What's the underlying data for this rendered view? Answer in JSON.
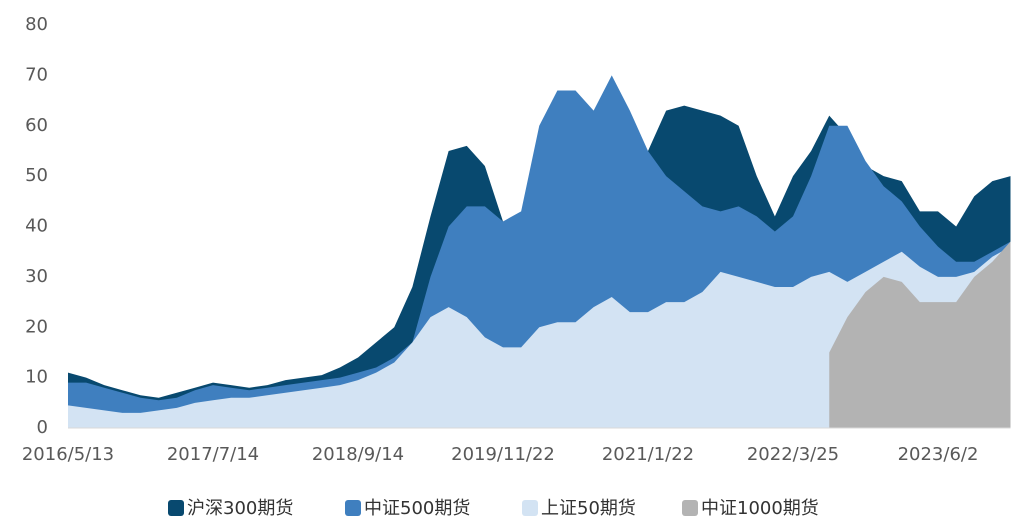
{
  "chart_data": {
    "type": "area",
    "categories": [
      "2016/5/13",
      null,
      null,
      null,
      null,
      null,
      null,
      null,
      "2017/7/14",
      null,
      null,
      null,
      null,
      null,
      null,
      null,
      "2018/9/14",
      null,
      null,
      null,
      null,
      null,
      null,
      null,
      "2019/11/22",
      null,
      null,
      null,
      null,
      null,
      null,
      null,
      "2021/1/22",
      null,
      null,
      null,
      null,
      null,
      null,
      null,
      "2022/3/25",
      null,
      null,
      null,
      null,
      null,
      null,
      null,
      "2023/6/2",
      null,
      null,
      null,
      null
    ],
    "series": [
      {
        "name": "沪深300期货",
        "color": "#08496f",
        "values": [
          11,
          10,
          8.5,
          7.5,
          6.5,
          6,
          7,
          8,
          9,
          8.5,
          8,
          8.5,
          9.5,
          10,
          10.5,
          12,
          14,
          17,
          20,
          28,
          42,
          55,
          56,
          52,
          41,
          42,
          45,
          50,
          52,
          52,
          55,
          55,
          55,
          63,
          64,
          63,
          62,
          60,
          50,
          42,
          50,
          55,
          62,
          58,
          52,
          50,
          49,
          43,
          43,
          40,
          46,
          49,
          50
        ]
      },
      {
        "name": "中证500期货",
        "color": "#3f7fbf",
        "values": [
          9,
          9,
          8,
          7,
          6,
          5.5,
          6,
          7.5,
          8.5,
          8,
          7.5,
          8,
          8.5,
          9,
          9.5,
          10,
          11,
          12,
          14,
          17,
          30,
          40,
          44,
          44,
          41,
          43,
          60,
          67,
          67,
          63,
          70,
          63,
          55,
          50,
          47,
          44,
          43,
          44,
          42,
          39,
          42,
          50,
          60,
          60,
          53,
          48,
          45,
          40,
          36,
          33,
          33,
          35,
          37
        ]
      },
      {
        "name": "上证50期货",
        "color": "#d3e3f3",
        "values": [
          4.5,
          4,
          3.5,
          3,
          3,
          3.5,
          4,
          5,
          5.5,
          6,
          6,
          6.5,
          7,
          7.5,
          8,
          8.5,
          9.5,
          11,
          13,
          17,
          22,
          24,
          22,
          18,
          16,
          16,
          20,
          21,
          21,
          24,
          26,
          23,
          23,
          25,
          25,
          27,
          31,
          30,
          29,
          28,
          28,
          30,
          31,
          29,
          31,
          33,
          35,
          32,
          30,
          30,
          31,
          34,
          36
        ]
      },
      {
        "name": "中证1000期货",
        "color": "#b3b3b3",
        "values": [
          null,
          null,
          null,
          null,
          null,
          null,
          null,
          null,
          null,
          null,
          null,
          null,
          null,
          null,
          null,
          null,
          null,
          null,
          null,
          null,
          null,
          null,
          null,
          null,
          null,
          null,
          null,
          null,
          null,
          null,
          null,
          null,
          null,
          null,
          null,
          null,
          null,
          null,
          null,
          null,
          null,
          null,
          15,
          22,
          27,
          30,
          29,
          25,
          25,
          25,
          30,
          33,
          37
        ]
      }
    ],
    "ylim": [
      0,
      80
    ],
    "yticks": [
      0,
      10,
      20,
      30,
      40,
      50,
      60,
      70,
      80
    ],
    "grid": false
  }
}
